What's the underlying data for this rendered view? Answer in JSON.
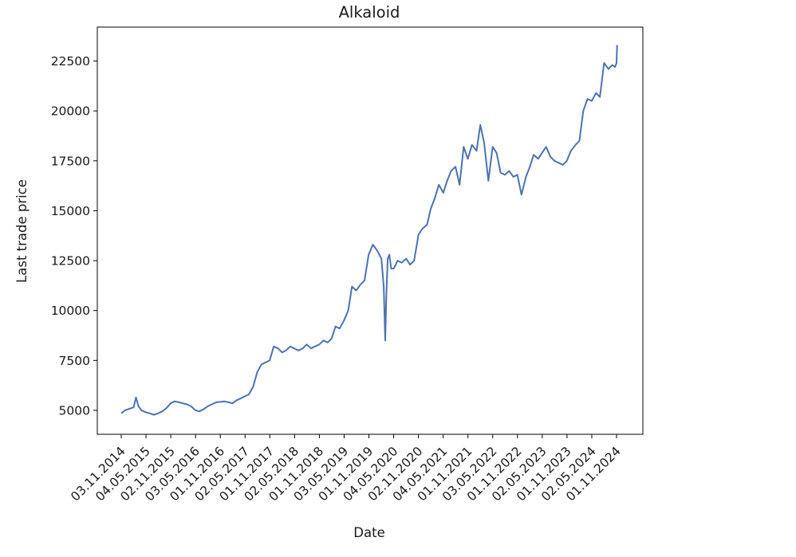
{
  "chart_data": {
    "type": "line",
    "title": "Alkaloid",
    "xlabel": "Date",
    "ylabel": "Last trade price",
    "x_tick_labels": [
      "03.11.2014",
      "04.05.2015",
      "02.11.2015",
      "03.05.2016",
      "01.11.2016",
      "02.05.2017",
      "01.11.2017",
      "02.05.2018",
      "01.11.2018",
      "03.05.2019",
      "01.11.2019",
      "04.05.2020",
      "02.11.2020",
      "04.05.2021",
      "01.11.2021",
      "03.05.2022",
      "01.11.2022",
      "02.05.2023",
      "01.11.2023",
      "02.05.2024",
      "01.11.2024"
    ],
    "y_ticks": [
      5000,
      7500,
      10000,
      12500,
      15000,
      17500,
      20000,
      22500
    ],
    "y_tick_labels": [
      "5000",
      "7500",
      "10000",
      "12500",
      "15000",
      "17500",
      "20000",
      "22500"
    ],
    "ylim": [
      3800,
      24200
    ],
    "line_color": "#4c72b0",
    "grid": false,
    "series": [
      {
        "x": [
          "2014-11-03",
          "2014-12-01",
          "2015-01-02",
          "2015-02-02",
          "2015-02-20",
          "2015-03-10",
          "2015-04-01",
          "2015-05-04",
          "2015-06-01",
          "2015-07-01",
          "2015-08-03",
          "2015-09-01",
          "2015-10-01",
          "2015-11-02",
          "2015-12-01",
          "2016-01-04",
          "2016-02-01",
          "2016-03-01",
          "2016-04-01",
          "2016-05-03",
          "2016-06-01",
          "2016-07-01",
          "2016-08-01",
          "2016-09-01",
          "2016-10-03",
          "2016-11-01",
          "2016-12-01",
          "2017-01-03",
          "2017-02-01",
          "2017-03-01",
          "2017-04-03",
          "2017-05-02",
          "2017-06-01",
          "2017-07-03",
          "2017-08-01",
          "2017-09-01",
          "2017-10-02",
          "2017-11-01",
          "2017-12-01",
          "2018-01-03",
          "2018-02-01",
          "2018-03-01",
          "2018-04-02",
          "2018-05-02",
          "2018-06-01",
          "2018-07-02",
          "2018-08-01",
          "2018-09-03",
          "2018-10-01",
          "2018-11-01",
          "2018-12-03",
          "2019-01-03",
          "2019-02-01",
          "2019-03-01",
          "2019-04-01",
          "2019-05-03",
          "2019-06-03",
          "2019-07-01",
          "2019-08-01",
          "2019-09-02",
          "2019-10-01",
          "2019-11-01",
          "2019-12-02",
          "2020-01-03",
          "2020-02-03",
          "2020-02-20",
          "2020-03-02",
          "2020-03-10",
          "2020-03-20",
          "2020-04-01",
          "2020-04-15",
          "2020-05-04",
          "2020-06-01",
          "2020-07-01",
          "2020-08-03",
          "2020-09-01",
          "2020-10-01",
          "2020-11-02",
          "2020-12-01",
          "2021-01-04",
          "2021-02-01",
          "2021-03-01",
          "2021-04-01",
          "2021-05-04",
          "2021-06-01",
          "2021-07-01",
          "2021-08-02",
          "2021-09-01",
          "2021-10-01",
          "2021-11-01",
          "2021-12-01",
          "2022-01-04",
          "2022-02-01",
          "2022-03-01",
          "2022-04-01",
          "2022-05-03",
          "2022-06-01",
          "2022-07-01",
          "2022-08-01",
          "2022-09-01",
          "2022-10-03",
          "2022-11-01",
          "2022-12-01",
          "2023-01-03",
          "2023-02-01",
          "2023-03-01",
          "2023-04-03",
          "2023-05-02",
          "2023-06-01",
          "2023-07-03",
          "2023-08-01",
          "2023-09-01",
          "2023-10-02",
          "2023-11-01",
          "2023-12-01",
          "2024-01-03",
          "2024-02-01",
          "2024-03-01",
          "2024-04-01",
          "2024-05-02",
          "2024-06-03",
          "2024-07-01",
          "2024-08-01",
          "2024-09-02",
          "2024-10-01",
          "2024-10-20",
          "2024-11-01",
          "2024-11-05"
        ],
        "y": [
          4850,
          5000,
          5080,
          5150,
          5650,
          5200,
          5000,
          4900,
          4850,
          4780,
          4850,
          4950,
          5100,
          5350,
          5450,
          5400,
          5350,
          5300,
          5200,
          5000,
          4950,
          5050,
          5200,
          5300,
          5400,
          5420,
          5450,
          5400,
          5350,
          5500,
          5600,
          5700,
          5800,
          6200,
          6900,
          7300,
          7400,
          7500,
          8200,
          8100,
          7900,
          8000,
          8200,
          8100,
          8000,
          8100,
          8300,
          8100,
          8200,
          8300,
          8500,
          8400,
          8600,
          9200,
          9100,
          9500,
          10000,
          11200,
          11000,
          11300,
          11500,
          12800,
          13300,
          13000,
          12600,
          11200,
          8500,
          10800,
          12600,
          12800,
          12100,
          12100,
          12500,
          12400,
          12600,
          12300,
          12500,
          13800,
          14100,
          14300,
          15100,
          15600,
          16300,
          15900,
          16500,
          17000,
          17200,
          16300,
          18200,
          17600,
          18300,
          18000,
          19300,
          18400,
          16500,
          18200,
          17900,
          16900,
          16800,
          17000,
          16700,
          16800,
          15800,
          16700,
          17200,
          17800,
          17600,
          17900,
          18200,
          17700,
          17500,
          17400,
          17300,
          17500,
          18000,
          18300,
          18500,
          20000,
          20600,
          20500,
          20900,
          20700,
          22400,
          22100,
          22300,
          22200,
          22400,
          23300
        ]
      }
    ]
  }
}
